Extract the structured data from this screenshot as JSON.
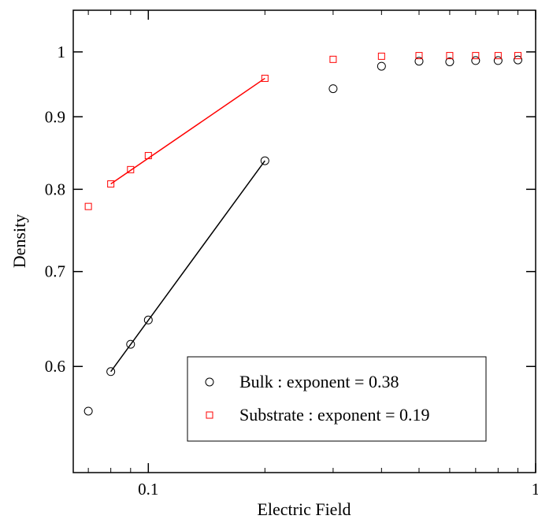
{
  "chart_data": {
    "type": "scatter",
    "xlabel": "Electric Field",
    "ylabel": "Density",
    "x_scale": "log",
    "y_scale": "log",
    "xlim": [
      0.064,
      1.0
    ],
    "ylim": [
      0.505,
      1.07
    ],
    "x_ticks": [
      {
        "value": 0.1,
        "label": "0.1"
      },
      {
        "value": 1,
        "label": "1"
      }
    ],
    "y_ticks": [
      {
        "value": 0.6,
        "label": "0.6"
      },
      {
        "value": 0.7,
        "label": "0.7"
      },
      {
        "value": 0.8,
        "label": "0.8"
      },
      {
        "value": 0.9,
        "label": "0.9"
      },
      {
        "value": 1.0,
        "label": "1"
      }
    ],
    "grid": false,
    "legend_position": "bottom-right",
    "series": [
      {
        "name": "Bulk : exponent = 0.38",
        "marker": "circle",
        "color": "#000000",
        "points": [
          {
            "x": 0.07,
            "y": 0.558
          },
          {
            "x": 0.08,
            "y": 0.595
          },
          {
            "x": 0.09,
            "y": 0.622
          },
          {
            "x": 0.1,
            "y": 0.647
          },
          {
            "x": 0.2,
            "y": 0.838
          },
          {
            "x": 0.3,
            "y": 0.942
          },
          {
            "x": 0.4,
            "y": 0.977
          },
          {
            "x": 0.5,
            "y": 0.985
          },
          {
            "x": 0.6,
            "y": 0.984
          },
          {
            "x": 0.7,
            "y": 0.986
          },
          {
            "x": 0.8,
            "y": 0.986
          },
          {
            "x": 0.9,
            "y": 0.987
          }
        ],
        "fit": {
          "x": [
            0.08,
            0.2
          ],
          "y": [
            0.595,
            0.838
          ]
        }
      },
      {
        "name": "Substrate : exponent = 0.19",
        "marker": "square",
        "color": "#ff0000",
        "points": [
          {
            "x": 0.07,
            "y": 0.778
          },
          {
            "x": 0.08,
            "y": 0.807
          },
          {
            "x": 0.09,
            "y": 0.826
          },
          {
            "x": 0.1,
            "y": 0.845
          },
          {
            "x": 0.2,
            "y": 0.958
          },
          {
            "x": 0.3,
            "y": 0.988
          },
          {
            "x": 0.4,
            "y": 0.993
          },
          {
            "x": 0.5,
            "y": 0.994
          },
          {
            "x": 0.6,
            "y": 0.994
          },
          {
            "x": 0.7,
            "y": 0.994
          },
          {
            "x": 0.8,
            "y": 0.994
          },
          {
            "x": 0.9,
            "y": 0.994
          }
        ],
        "fit": {
          "x": [
            0.08,
            0.2
          ],
          "y": [
            0.807,
            0.958
          ]
        }
      }
    ]
  }
}
